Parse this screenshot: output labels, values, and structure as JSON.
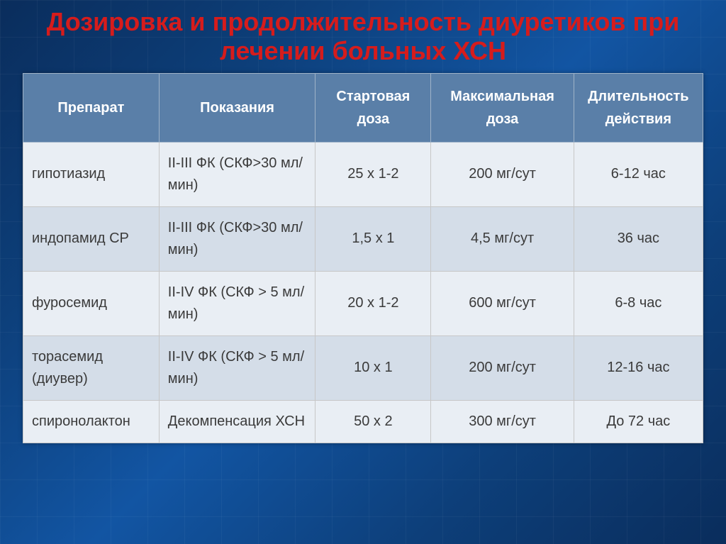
{
  "title": "Дозировка и продолжительность диуретиков при лечении больных ХСН",
  "colors": {
    "title_color": "#d61c1c",
    "header_bg": "#5a7fa8",
    "header_text": "#ffffff",
    "row_odd_bg": "#e9eef4",
    "row_even_bg": "#d4dde8",
    "cell_text": "#3a3a3a",
    "slide_bg_from": "#0a2d5c",
    "slide_bg_to": "#1255a3",
    "grid_line": "rgba(255,255,255,0.04)"
  },
  "typography": {
    "title_fontsize": 36,
    "header_fontsize": 20,
    "cell_fontsize": 20,
    "font_family": "Arial"
  },
  "table": {
    "columns": [
      {
        "key": "preparat",
        "label": "Препарат",
        "align": "left",
        "width_pct": 20
      },
      {
        "key": "pokazaniya",
        "label": "Показания",
        "align": "left",
        "width_pct": 23
      },
      {
        "key": "startovaya",
        "label": "Стартовая доза",
        "align": "center",
        "width_pct": 17
      },
      {
        "key": "maksimalnaya",
        "label": "Максимальная доза",
        "align": "center",
        "width_pct": 21
      },
      {
        "key": "dlitelnost",
        "label": "Длительность действия",
        "align": "center",
        "width_pct": 19
      }
    ],
    "rows": [
      {
        "preparat": "гипотиазид",
        "pokazaniya": "II-III ФК (СКФ>30 мл/мин)",
        "startovaya": "25 х 1-2",
        "maksimalnaya": "200 мг/сут",
        "dlitelnost": "6-12 час"
      },
      {
        "preparat": "индопамид СР",
        "pokazaniya": "II-III ФК (СКФ>30 мл/мин)",
        "startovaya": "1,5 х 1",
        "maksimalnaya": "4,5 мг/сут",
        "dlitelnost": "36 час"
      },
      {
        "preparat": "фуросемид",
        "pokazaniya": "II-IV ФК (СКФ > 5 мл/мин)",
        "startovaya": "20 х 1-2",
        "maksimalnaya": "600 мг/сут",
        "dlitelnost": "6-8 час"
      },
      {
        "preparat": "торасемид (диувер)",
        "pokazaniya": "II-IV ФК (СКФ > 5 мл/мин)",
        "startovaya": "10 х 1",
        "maksimalnaya": "200 мг/сут",
        "dlitelnost": "12-16 час"
      },
      {
        "preparat": "спиронолактон",
        "pokazaniya": "Декомпенсация ХСН",
        "startovaya": "50 х 2",
        "maksimalnaya": "300 мг/сут",
        "dlitelnost": "До 72 час"
      }
    ]
  }
}
